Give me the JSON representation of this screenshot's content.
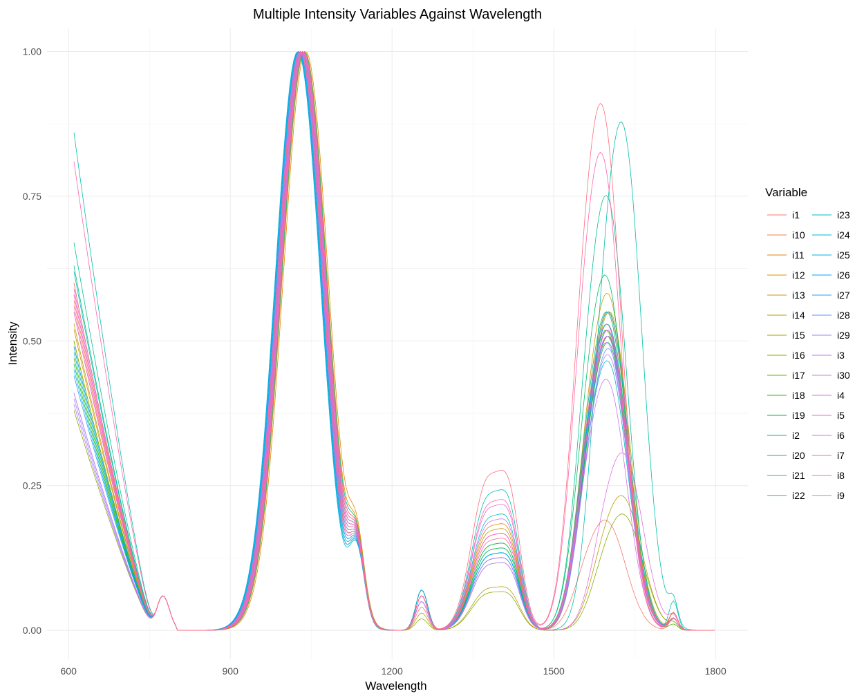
{
  "chart_data": {
    "type": "line",
    "title": "Multiple Intensity Variables Against Wavelength",
    "xlabel": "Wavelength",
    "ylabel": "Intensity",
    "xlim": [
      560,
      1860
    ],
    "ylim": [
      -0.05,
      1.04
    ],
    "x_ticks": [
      600,
      900,
      1200,
      1500,
      1800
    ],
    "x_tick_labels": [
      "600",
      "900",
      "1200",
      "1500",
      "1800"
    ],
    "y_ticks": [
      0,
      0.25,
      0.5,
      0.75,
      1
    ],
    "y_tick_labels": [
      "0.00",
      "0.25",
      "0.50",
      "0.75",
      "1.00"
    ],
    "grid": true,
    "legend": {
      "title": "Variable",
      "position": "right",
      "columns": 2
    },
    "x_range": [
      610,
      1800
    ],
    "series": [
      {
        "name": "i1",
        "color": "#F8766D",
        "params": {
          "a0": 0.58,
          "pk": 1032,
          "h3": 0.04,
          "h4": 0.14,
          "h5": 0.18,
          "c5": 1600,
          "h6": 0.02
        }
      },
      {
        "name": "i10",
        "color": "#F07F4F",
        "params": {
          "a0": 0.57,
          "pk": 1036,
          "h3": 0.07,
          "h4": 0.2,
          "h5": 0.52,
          "c5": 1605,
          "h6": 0.03
        }
      },
      {
        "name": "i11",
        "color": "#E58700",
        "params": {
          "a0": 0.55,
          "pk": 1040,
          "h3": 0.07,
          "h4": 0.22,
          "h5": 0.5,
          "c5": 1603,
          "h6": 0.03
        }
      },
      {
        "name": "i12",
        "color": "#D89000",
        "params": {
          "a0": 0.52,
          "pk": 1038,
          "h3": 0.06,
          "h4": 0.16,
          "h5": 0.48,
          "c5": 1606,
          "h6": 0.02
        }
      },
      {
        "name": "i13",
        "color": "#C99800",
        "params": {
          "a0": 0.5,
          "pk": 1035,
          "h3": 0.06,
          "h4": 0.21,
          "h5": 0.55,
          "c5": 1604,
          "h6": 0.02
        }
      },
      {
        "name": "i14",
        "color": "#B79F00",
        "params": {
          "a0": 0.53,
          "pk": 1034,
          "h3": 0.03,
          "h4": 0.09,
          "h5": 0.22,
          "c5": 1630,
          "h6": 0.01
        }
      },
      {
        "name": "i15",
        "color": "#A3A500",
        "params": {
          "a0": 0.49,
          "pk": 1030,
          "h3": 0.06,
          "h4": 0.18,
          "h5": 0.52,
          "c5": 1608,
          "h6": 0.02
        }
      },
      {
        "name": "i16",
        "color": "#8BAB00",
        "params": {
          "a0": 0.38,
          "pk": 1026,
          "h3": 0.02,
          "h4": 0.08,
          "h5": 0.19,
          "c5": 1632,
          "h6": 0.01
        }
      },
      {
        "name": "i17",
        "color": "#6BB100",
        "params": {
          "a0": 0.5,
          "pk": 1032,
          "h3": 0.06,
          "h4": 0.17,
          "h5": 0.5,
          "c5": 1604,
          "h6": 0.02
        }
      },
      {
        "name": "i18",
        "color": "#39B600",
        "params": {
          "a0": 0.47,
          "pk": 1029,
          "h3": 0.05,
          "h4": 0.15,
          "h5": 0.49,
          "c5": 1602,
          "h6": 0.01
        }
      },
      {
        "name": "i19",
        "color": "#00BA38",
        "params": {
          "a0": 0.46,
          "pk": 1031,
          "h3": 0.06,
          "h4": 0.16,
          "h5": 0.47,
          "c5": 1605,
          "h6": 0.02
        }
      },
      {
        "name": "i2",
        "color": "#00BD5F",
        "params": {
          "a0": 0.6,
          "pk": 1034,
          "h3": 0.07,
          "h4": 0.18,
          "h5": 0.58,
          "c5": 1600,
          "h6": 0.02
        }
      },
      {
        "name": "i20",
        "color": "#00C07B",
        "params": {
          "a0": 0.63,
          "pk": 1037,
          "h3": 0.07,
          "h4": 0.17,
          "h5": 0.52,
          "c5": 1603,
          "h6": 0.02
        }
      },
      {
        "name": "i21",
        "color": "#00C094",
        "params": {
          "a0": 0.67,
          "pk": 1033,
          "h3": 0.06,
          "h4": 0.16,
          "h5": 0.71,
          "c5": 1602,
          "h6": 0.02
        }
      },
      {
        "name": "i22",
        "color": "#00BFAA",
        "params": {
          "a0": 0.86,
          "pk": 1030,
          "h3": 0.06,
          "h4": 0.29,
          "h5": 0.83,
          "c5": 1630,
          "h6": 0.04
        }
      },
      {
        "name": "i23",
        "color": "#00BCC0",
        "params": {
          "a0": 0.62,
          "pk": 1028,
          "h3": 0.07,
          "h4": 0.24,
          "h5": 0.44,
          "c5": 1604,
          "h6": 0.05
        }
      },
      {
        "name": "i24",
        "color": "#00B8D3",
        "params": {
          "a0": 0.48,
          "pk": 1027,
          "h3": 0.05,
          "h4": 0.16,
          "h5": 0.52,
          "c5": 1606,
          "h6": 0.02
        }
      },
      {
        "name": "i25",
        "color": "#00B0E6",
        "params": {
          "a0": 0.45,
          "pk": 1025,
          "h3": 0.06,
          "h4": 0.16,
          "h5": 0.5,
          "c5": 1604,
          "h6": 0.02
        }
      },
      {
        "name": "i26",
        "color": "#00A8F4",
        "params": {
          "a0": 0.49,
          "pk": 1026,
          "h3": 0.07,
          "h4": 0.16,
          "h5": 0.48,
          "c5": 1605,
          "h6": 0.02
        }
      },
      {
        "name": "i27",
        "color": "#239EFF",
        "params": {
          "a0": 0.44,
          "pk": 1028,
          "h3": 0.06,
          "h4": 0.15,
          "h5": 0.49,
          "c5": 1604,
          "h6": 0.02
        }
      },
      {
        "name": "i28",
        "color": "#6991FF",
        "params": {
          "a0": 0.41,
          "pk": 1030,
          "h3": 0.05,
          "h4": 0.15,
          "h5": 0.46,
          "c5": 1606,
          "h6": 0.02
        }
      },
      {
        "name": "i29",
        "color": "#9A85FF",
        "params": {
          "a0": 0.4,
          "pk": 1031,
          "h3": 0.05,
          "h4": 0.14,
          "h5": 0.45,
          "c5": 1605,
          "h6": 0.02
        }
      },
      {
        "name": "i3",
        "color": "#B87CF8",
        "params": {
          "a0": 0.39,
          "pk": 1033,
          "h3": 0.05,
          "h4": 0.15,
          "h5": 0.47,
          "c5": 1603,
          "h6": 0.02
        }
      },
      {
        "name": "i30",
        "color": "#CF74F0",
        "params": {
          "a0": 0.41,
          "pk": 1034,
          "h3": 0.05,
          "h4": 0.23,
          "h5": 0.41,
          "c5": 1602,
          "h6": 0.02
        }
      },
      {
        "name": "i4",
        "color": "#E16CE5",
        "params": {
          "a0": 0.55,
          "pk": 1029,
          "h3": 0.06,
          "h4": 0.26,
          "h5": 0.29,
          "c5": 1632,
          "h6": 0.02
        }
      },
      {
        "name": "i5",
        "color": "#EE66D6",
        "params": {
          "a0": 0.58,
          "pk": 1032,
          "h3": 0.06,
          "h4": 0.2,
          "h5": 0.48,
          "c5": 1604,
          "h6": 0.02
        }
      },
      {
        "name": "i6",
        "color": "#F863C4",
        "params": {
          "a0": 0.59,
          "pk": 1035,
          "h3": 0.06,
          "h4": 0.2,
          "h5": 0.5,
          "c5": 1603,
          "h6": 0.02
        }
      },
      {
        "name": "i7",
        "color": "#FE64AF",
        "params": {
          "a0": 0.81,
          "pk": 1033,
          "h3": 0.06,
          "h4": 0.27,
          "h5": 0.78,
          "c5": 1592,
          "h6": 0.03
        }
      },
      {
        "name": "i8",
        "color": "#FF6998",
        "params": {
          "a0": 0.56,
          "pk": 1036,
          "h3": 0.06,
          "h4": 0.19,
          "h5": 0.49,
          "c5": 1605,
          "h6": 0.02
        }
      },
      {
        "name": "i9",
        "color": "#FF6C7F",
        "params": {
          "a0": 0.6,
          "pk": 1030,
          "h3": 0.06,
          "h4": 0.33,
          "h5": 0.86,
          "c5": 1592,
          "h6": 0.03
        }
      }
    ]
  }
}
